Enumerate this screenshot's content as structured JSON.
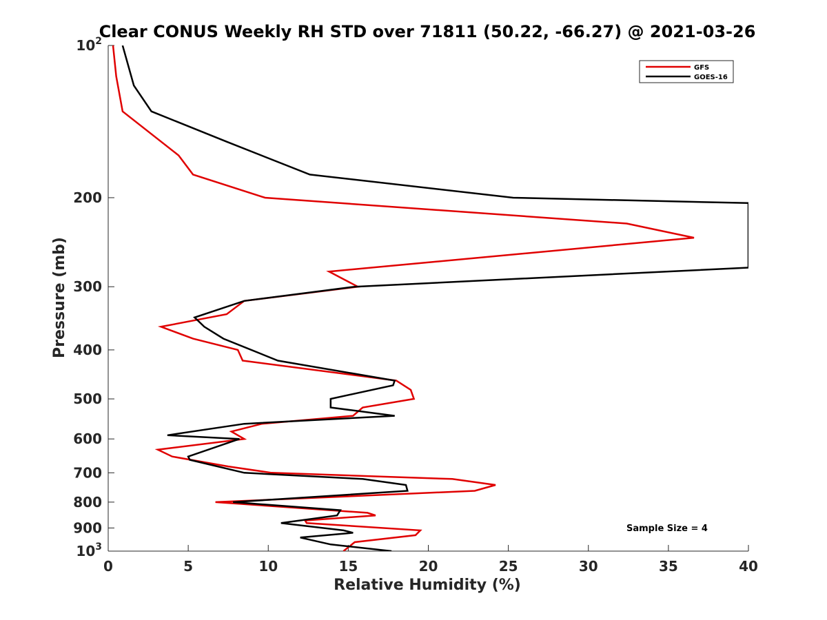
{
  "chart_data": {
    "type": "line",
    "title": "Clear CONUS Weekly RH STD over 71811 (50.22, -66.27) @ 2021-03-26",
    "xlabel": "Relative Humidity (%)",
    "ylabel": "Pressure (mb)",
    "xlim": [
      0,
      40
    ],
    "ylim": [
      100,
      1000
    ],
    "y_scale": "log",
    "y_reversed": true,
    "grid": false,
    "legend_position": "top-right",
    "annotation": "Sample Size = 4",
    "x_ticks": [
      {
        "value": 0,
        "label": "0"
      },
      {
        "value": 5,
        "label": "5"
      },
      {
        "value": 10,
        "label": "10"
      },
      {
        "value": 15,
        "label": "15"
      },
      {
        "value": 20,
        "label": "20"
      },
      {
        "value": 25,
        "label": "25"
      },
      {
        "value": 30,
        "label": "30"
      },
      {
        "value": 35,
        "label": "35"
      },
      {
        "value": 40,
        "label": "40"
      }
    ],
    "y_ticks": [
      {
        "value": 100,
        "label": "10",
        "sup": "2"
      },
      {
        "value": 200,
        "label": "200",
        "sup": ""
      },
      {
        "value": 300,
        "label": "300",
        "sup": ""
      },
      {
        "value": 400,
        "label": "400",
        "sup": ""
      },
      {
        "value": 500,
        "label": "500",
        "sup": ""
      },
      {
        "value": 600,
        "label": "600",
        "sup": ""
      },
      {
        "value": 700,
        "label": "700",
        "sup": ""
      },
      {
        "value": 800,
        "label": "800",
        "sup": ""
      },
      {
        "value": 900,
        "label": "900",
        "sup": ""
      },
      {
        "value": 1000,
        "label": "10",
        "sup": "3"
      }
    ],
    "series": [
      {
        "name": "GFS",
        "color": "#e00000",
        "points": [
          [
            0.3,
            100
          ],
          [
            0.5,
            115
          ],
          [
            0.9,
            135
          ],
          [
            4.4,
            165
          ],
          [
            5.3,
            180
          ],
          [
            9.8,
            200
          ],
          [
            32.4,
            225
          ],
          [
            36.6,
            240
          ],
          [
            13.8,
            280
          ],
          [
            15.6,
            300
          ],
          [
            8.5,
            320
          ],
          [
            7.4,
            340
          ],
          [
            3.3,
            360
          ],
          [
            5.3,
            380
          ],
          [
            8.1,
            400
          ],
          [
            8.4,
            420
          ],
          [
            18.0,
            460
          ],
          [
            18.9,
            480
          ],
          [
            19.1,
            500
          ],
          [
            15.9,
            520
          ],
          [
            15.3,
            540
          ],
          [
            9.6,
            560
          ],
          [
            7.7,
            580
          ],
          [
            8.5,
            600
          ],
          [
            3.1,
            630
          ],
          [
            4.0,
            650
          ],
          [
            7.5,
            680
          ],
          [
            10.2,
            700
          ],
          [
            21.5,
            720
          ],
          [
            24.2,
            740
          ],
          [
            22.9,
            760
          ],
          [
            6.7,
            800
          ],
          [
            16.2,
            840
          ],
          [
            16.7,
            850
          ],
          [
            12.3,
            870
          ],
          [
            12.4,
            880
          ],
          [
            19.5,
            910
          ],
          [
            19.2,
            930
          ],
          [
            15.4,
            960
          ],
          [
            14.7,
            1000
          ]
        ]
      },
      {
        "name": "GOES-16",
        "color": "#000000",
        "points": [
          [
            0.9,
            100
          ],
          [
            1.6,
            120
          ],
          [
            2.7,
            135
          ],
          [
            7.4,
            155
          ],
          [
            12.6,
            180
          ],
          [
            25.3,
            200
          ],
          [
            40.0,
            205
          ],
          [
            40.0,
            275
          ],
          [
            15.4,
            300
          ],
          [
            8.5,
            320
          ],
          [
            5.4,
            345
          ],
          [
            6.0,
            360
          ],
          [
            7.2,
            380
          ],
          [
            10.6,
            420
          ],
          [
            17.9,
            460
          ],
          [
            17.8,
            470
          ],
          [
            13.9,
            500
          ],
          [
            13.9,
            520
          ],
          [
            17.9,
            540
          ],
          [
            8.5,
            560
          ],
          [
            3.7,
            590
          ],
          [
            8.2,
            600
          ],
          [
            5.0,
            650
          ],
          [
            5.1,
            660
          ],
          [
            8.5,
            700
          ],
          [
            15.9,
            720
          ],
          [
            18.6,
            740
          ],
          [
            18.7,
            760
          ],
          [
            7.8,
            800
          ],
          [
            14.5,
            830
          ],
          [
            14.3,
            850
          ],
          [
            10.8,
            880
          ],
          [
            14.7,
            910
          ],
          [
            15.3,
            920
          ],
          [
            12.0,
            940
          ],
          [
            13.9,
            970
          ],
          [
            17.7,
            1000
          ]
        ]
      }
    ]
  }
}
